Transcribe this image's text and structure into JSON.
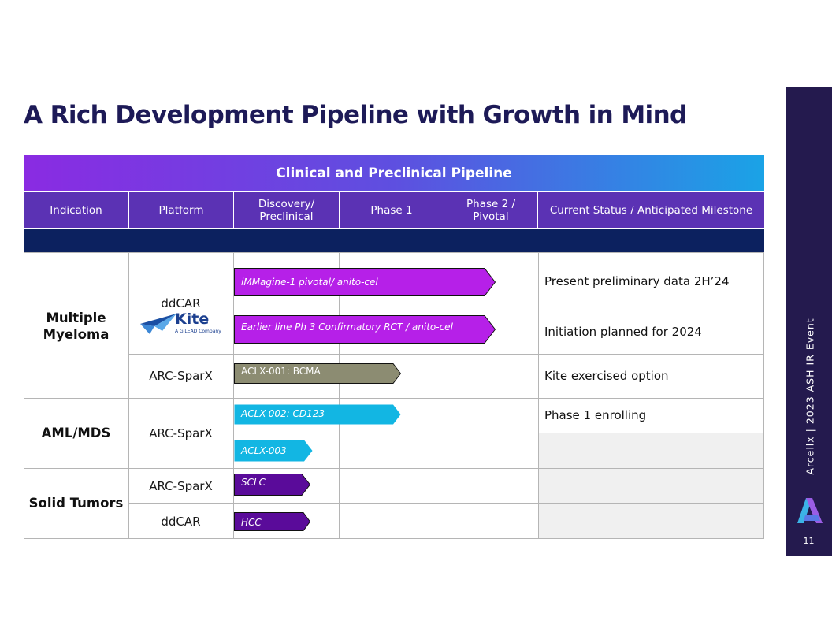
{
  "title": "A Rich Development Pipeline with Growth in Mind",
  "banner": "Clinical and Preclinical Pipeline",
  "headers": {
    "indication": "Indication",
    "platform": "Platform",
    "discovery_l1": "Discovery/",
    "discovery_l2": "Preclinical",
    "phase1": "Phase 1",
    "phase2_l1": "Phase 2 /",
    "phase2_l2": "Pivotal",
    "status": "Current Status / Anticipated Milestone"
  },
  "indications": {
    "mm_l1": "Multiple",
    "mm_l2": "Myeloma",
    "aml": "AML/MDS",
    "solid": "Solid Tumors"
  },
  "platforms": {
    "ddcar": "ddCAR",
    "kite_logo": "Kite",
    "kite_sub": "A GILEAD Company",
    "arc_mm": "ARC-SparX",
    "arc_aml": "ARC-SparX",
    "arc_solid": "ARC-SparX",
    "ddcar_solid": "ddCAR"
  },
  "programs": [
    {
      "label": "iMMagine-1 pivotal/ anito-cel",
      "color": "#b620e8",
      "stage_fraction": 0.86
    },
    {
      "label": "Earlier line Ph 3 Confirmatory RCT / anito-cel",
      "color": "#b620e8",
      "stage_fraction": 0.86
    },
    {
      "label": "ACLX-001: BCMA",
      "color": "#8c8c72",
      "stage_fraction": 0.55
    },
    {
      "label": "ACLX-002: CD123",
      "color": "#12b6e3",
      "stage_fraction": 0.55
    },
    {
      "label": "ACLX-003",
      "color": "#12b6e3",
      "stage_fraction": 0.26
    },
    {
      "label": "SCLC",
      "color": "#5a0b9a",
      "stage_fraction": 0.25
    },
    {
      "label": "HCC",
      "color": "#5a0b9a",
      "stage_fraction": 0.25
    }
  ],
  "statuses": {
    "s1": "Present preliminary data 2H’24",
    "s2": "Initiation planned for 2024",
    "s3": "Kite exercised option",
    "s4": "Phase 1 enrolling"
  },
  "sidebar": {
    "event": "Arcellx   |   2023 ASH IR Event",
    "page": "11"
  }
}
